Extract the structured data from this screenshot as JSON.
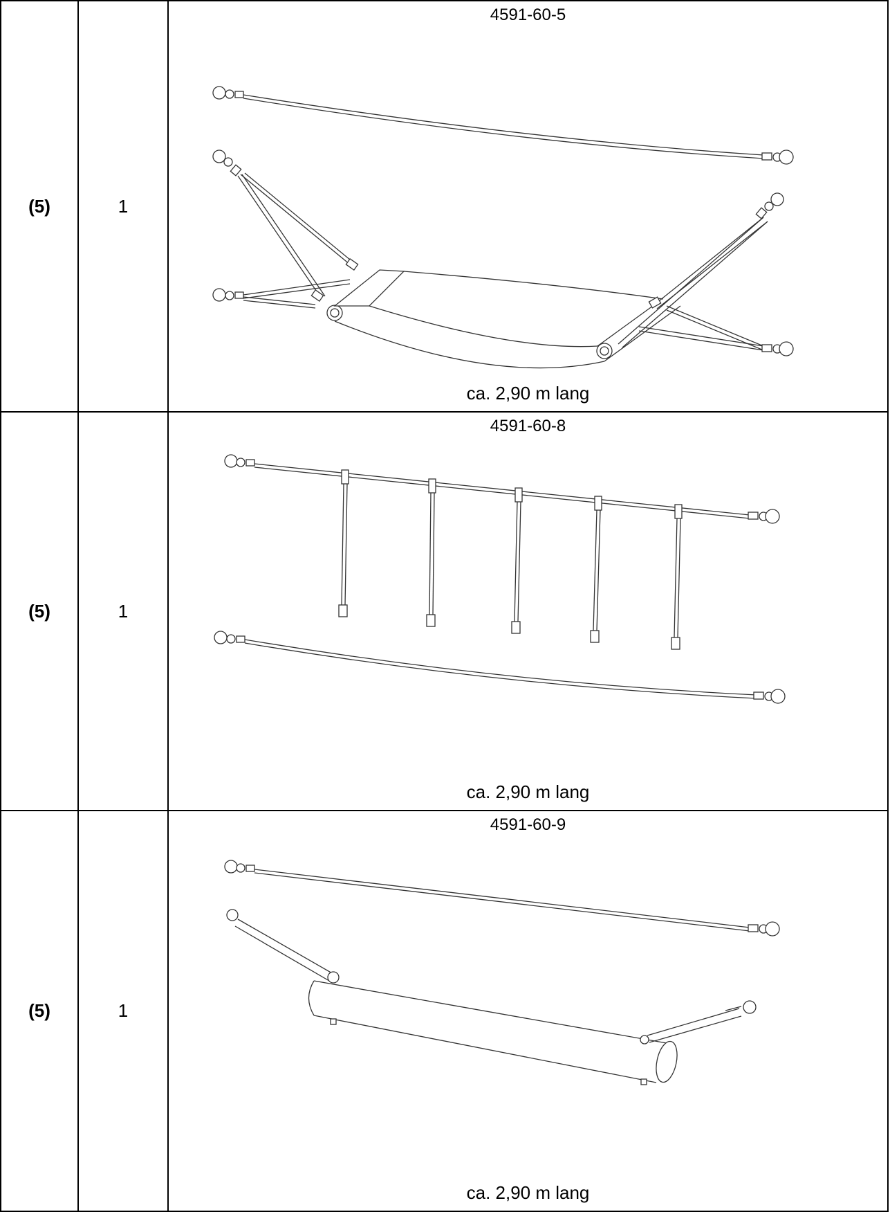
{
  "rows": [
    {
      "pos": "(5)",
      "qty": "1",
      "code": "4591-60-5",
      "length": "ca. 2,90 m lang",
      "drawing": "hammock-net-with-two-ropes"
    },
    {
      "pos": "(5)",
      "qty": "1",
      "code": "4591-60-8",
      "length": "ca. 2,90 m lang",
      "drawing": "rope-with-five-hanging-straps"
    },
    {
      "pos": "(5)",
      "qty": "1",
      "code": "4591-60-9",
      "length": "ca. 2,90 m lang",
      "drawing": "rope-with-roller-log-beam"
    }
  ]
}
